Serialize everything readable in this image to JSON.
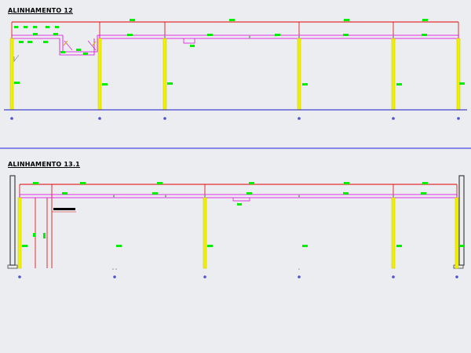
{
  "sections": [
    {
      "title": "ALINHAMENTO 12"
    },
    {
      "title": "ALINHAMENTO 13.1"
    }
  ],
  "colors": {
    "background": "#ebedf0",
    "frame_line": "#e00000",
    "beam": "#e000e0",
    "column": "#f0f000",
    "tag": "#00ee00",
    "ground_line": "#1818c8",
    "separator": "#2020e0",
    "support": "#404040"
  }
}
